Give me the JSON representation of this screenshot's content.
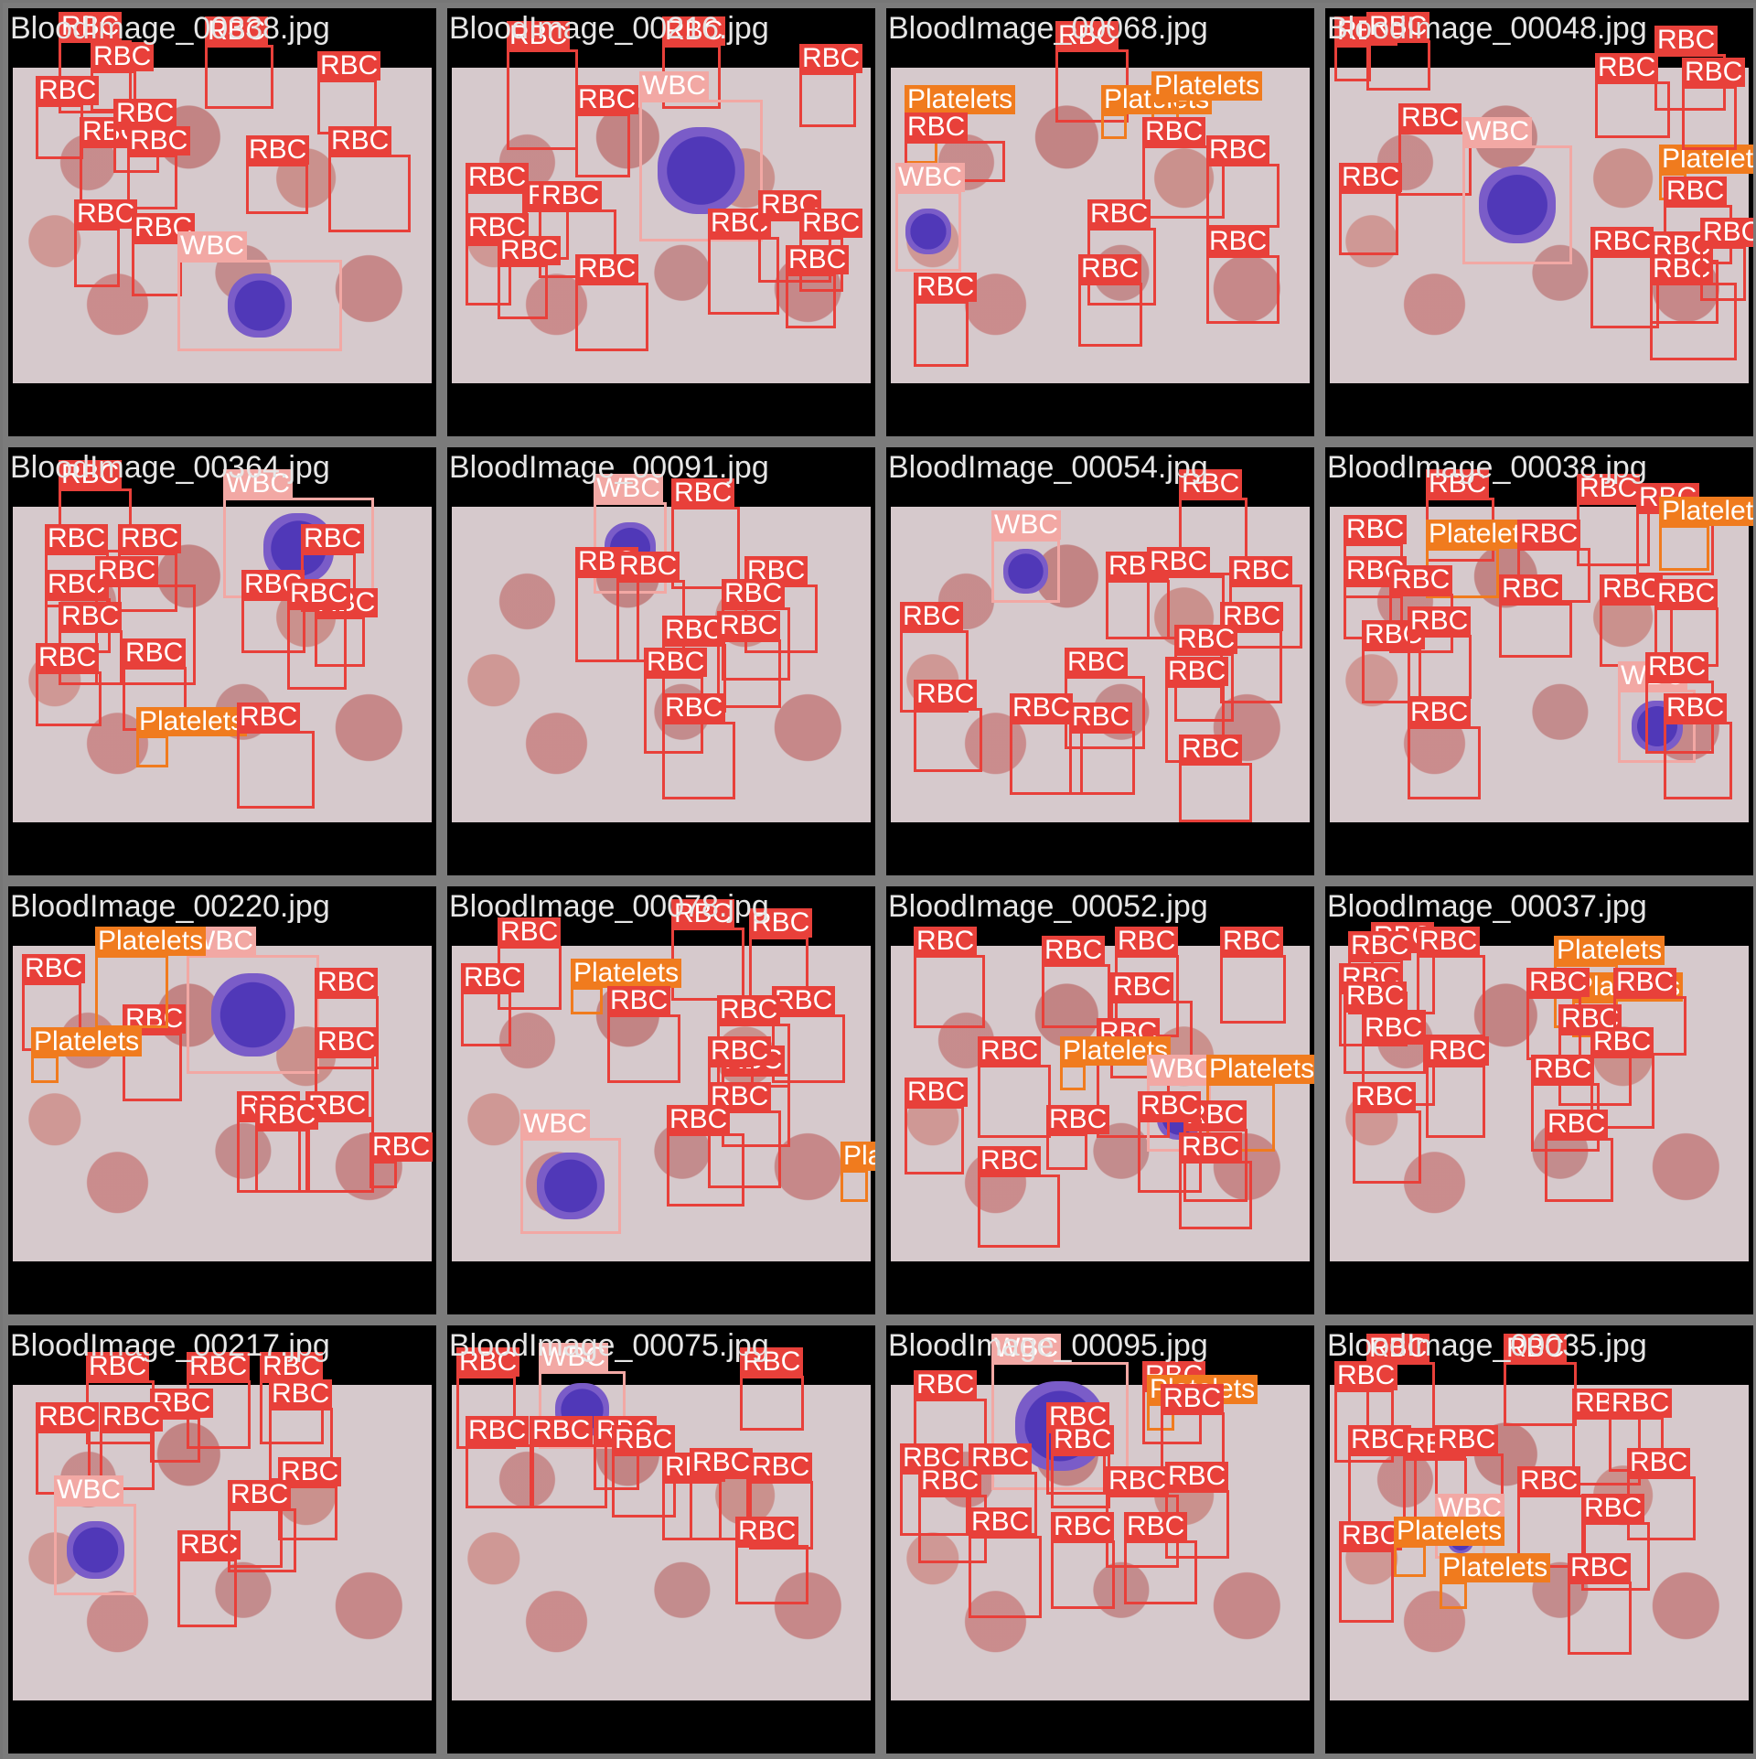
{
  "tiles": [
    {
      "filename": "BloodImage_00338.jpg",
      "detections": [
        {
          "label": "RBC",
          "cls": "rbc"
        },
        {
          "label": "RBC",
          "cls": "rbc"
        },
        {
          "label": "RBC",
          "cls": "rbc"
        },
        {
          "label": "RBC",
          "cls": "rbc"
        },
        {
          "label": "RBC",
          "cls": "rbc"
        },
        {
          "label": "RBC",
          "cls": "rbc"
        },
        {
          "label": "RBC",
          "cls": "rbc"
        },
        {
          "label": "RBC",
          "cls": "rbc"
        },
        {
          "label": "RBC",
          "cls": "rbc"
        },
        {
          "label": "RBC",
          "cls": "rbc"
        },
        {
          "label": "RBC",
          "cls": "rbc"
        },
        {
          "label": "RBC",
          "cls": "rbc"
        },
        {
          "label": "WBC",
          "cls": "wbc"
        }
      ]
    },
    {
      "filename": "BloodImage_00216.jpg",
      "detections": [
        {
          "label": "RBC",
          "cls": "rbc"
        },
        {
          "label": "RBC",
          "cls": "rbc"
        },
        {
          "label": "RBC",
          "cls": "rbc"
        },
        {
          "label": "RBC",
          "cls": "rbc"
        },
        {
          "label": "WBC",
          "cls": "wbc"
        },
        {
          "label": "RBC",
          "cls": "rbc"
        },
        {
          "label": "RBC",
          "cls": "rbc"
        },
        {
          "label": "RBC",
          "cls": "rbc"
        },
        {
          "label": "RBC",
          "cls": "rbc"
        },
        {
          "label": "RBC",
          "cls": "rbc"
        },
        {
          "label": "RBC",
          "cls": "rbc"
        },
        {
          "label": "RBC",
          "cls": "rbc"
        },
        {
          "label": "RBC",
          "cls": "rbc"
        },
        {
          "label": "RBC",
          "cls": "rbc"
        },
        {
          "label": "RBC",
          "cls": "rbc"
        }
      ]
    },
    {
      "filename": "BloodImage_00068.jpg",
      "detections": [
        {
          "label": "RBC",
          "cls": "rbc"
        },
        {
          "label": "Platelets",
          "cls": "plt"
        },
        {
          "label": "Platelets",
          "cls": "plt"
        },
        {
          "label": "Platelets",
          "cls": "plt"
        },
        {
          "label": "RBC",
          "cls": "rbc"
        },
        {
          "label": "WBC",
          "cls": "wbc"
        },
        {
          "label": "RBC",
          "cls": "rbc"
        },
        {
          "label": "RBC",
          "cls": "rbc"
        },
        {
          "label": "RBC",
          "cls": "rbc"
        },
        {
          "label": "RBC",
          "cls": "rbc"
        },
        {
          "label": "RBC",
          "cls": "rbc"
        },
        {
          "label": "RBC",
          "cls": "rbc"
        }
      ]
    },
    {
      "filename": "BloodImage_00048.jpg",
      "detections": [
        {
          "label": "RBC",
          "cls": "rbc"
        },
        {
          "label": "RBC",
          "cls": "rbc"
        },
        {
          "label": "RBC",
          "cls": "rbc"
        },
        {
          "label": "RBC",
          "cls": "rbc"
        },
        {
          "label": "RBC",
          "cls": "rbc"
        },
        {
          "label": "WBC",
          "cls": "wbc"
        },
        {
          "label": "Platelets",
          "cls": "plt"
        },
        {
          "label": "RBC",
          "cls": "rbc"
        },
        {
          "label": "RBC",
          "cls": "rbc"
        },
        {
          "label": "RBC",
          "cls": "rbc"
        },
        {
          "label": "RBC",
          "cls": "rbc"
        },
        {
          "label": "RBC",
          "cls": "rbc"
        },
        {
          "label": "RBC",
          "cls": "rbc"
        },
        {
          "label": "RBC",
          "cls": "rbc"
        }
      ]
    },
    {
      "filename": "BloodImage_00364.jpg",
      "detections": [
        {
          "label": "RBC",
          "cls": "rbc"
        },
        {
          "label": "WBC",
          "cls": "wbc"
        },
        {
          "label": "RBC",
          "cls": "rbc"
        },
        {
          "label": "RBC",
          "cls": "rbc"
        },
        {
          "label": "RBC",
          "cls": "rbc"
        },
        {
          "label": "RBC",
          "cls": "rbc"
        },
        {
          "label": "RBC",
          "cls": "rbc"
        },
        {
          "label": "RBC",
          "cls": "rbc"
        },
        {
          "label": "RBC",
          "cls": "rbc"
        },
        {
          "label": "RBC",
          "cls": "rbc"
        },
        {
          "label": "RBC",
          "cls": "rbc"
        },
        {
          "label": "RBC",
          "cls": "rbc"
        },
        {
          "label": "RBC",
          "cls": "rbc"
        },
        {
          "label": "Platelets",
          "cls": "plt"
        },
        {
          "label": "RBC",
          "cls": "rbc"
        }
      ]
    },
    {
      "filename": "BloodImage_00091.jpg",
      "detections": [
        {
          "label": "WBC",
          "cls": "wbc"
        },
        {
          "label": "RBC",
          "cls": "rbc"
        },
        {
          "label": "RBC",
          "cls": "rbc"
        },
        {
          "label": "RBC",
          "cls": "rbc"
        },
        {
          "label": "RBC",
          "cls": "rbc"
        },
        {
          "label": "RBC",
          "cls": "rbc"
        },
        {
          "label": "RBC",
          "cls": "rbc"
        },
        {
          "label": "RBC",
          "cls": "rbc"
        },
        {
          "label": "RBC",
          "cls": "rbc"
        },
        {
          "label": "RBC",
          "cls": "rbc"
        }
      ]
    },
    {
      "filename": "BloodImage_00054.jpg",
      "detections": [
        {
          "label": "RBC",
          "cls": "rbc"
        },
        {
          "label": "WBC",
          "cls": "wbc"
        },
        {
          "label": "RBC",
          "cls": "rbc"
        },
        {
          "label": "RBC",
          "cls": "rbc"
        },
        {
          "label": "RBC",
          "cls": "rbc"
        },
        {
          "label": "RBC",
          "cls": "rbc"
        },
        {
          "label": "RBC",
          "cls": "rbc"
        },
        {
          "label": "RBC",
          "cls": "rbc"
        },
        {
          "label": "RBC",
          "cls": "rbc"
        },
        {
          "label": "RBC",
          "cls": "rbc"
        },
        {
          "label": "RBC",
          "cls": "rbc"
        },
        {
          "label": "RBC",
          "cls": "rbc"
        },
        {
          "label": "RBC",
          "cls": "rbc"
        },
        {
          "label": "RBC",
          "cls": "rbc"
        }
      ]
    },
    {
      "filename": "BloodImage_00038.jpg",
      "detections": [
        {
          "label": "RBC",
          "cls": "rbc"
        },
        {
          "label": "RBC",
          "cls": "rbc"
        },
        {
          "label": "RBC",
          "cls": "rbc"
        },
        {
          "label": "Platelets",
          "cls": "plt"
        },
        {
          "label": "RBC",
          "cls": "rbc"
        },
        {
          "label": "Platelets",
          "cls": "plt"
        },
        {
          "label": "RBC",
          "cls": "rbc"
        },
        {
          "label": "RBC",
          "cls": "rbc"
        },
        {
          "label": "RBC",
          "cls": "rbc"
        },
        {
          "label": "RBC",
          "cls": "rbc"
        },
        {
          "label": "RBC",
          "cls": "rbc"
        },
        {
          "label": "RBC",
          "cls": "rbc"
        },
        {
          "label": "RBC",
          "cls": "rbc"
        },
        {
          "label": "RBC",
          "cls": "rbc"
        },
        {
          "label": "WBC",
          "cls": "wbc"
        },
        {
          "label": "RBC",
          "cls": "rbc"
        },
        {
          "label": "RBC",
          "cls": "rbc"
        },
        {
          "label": "RBC",
          "cls": "rbc"
        }
      ]
    },
    {
      "filename": "BloodImage_00220.jpg",
      "detections": [
        {
          "label": "RBC",
          "cls": "rbc"
        },
        {
          "label": "WBC",
          "cls": "wbc"
        },
        {
          "label": "RBC",
          "cls": "rbc"
        },
        {
          "label": "RBC",
          "cls": "rbc"
        },
        {
          "label": "RBC",
          "cls": "rbc"
        },
        {
          "label": "Platelets",
          "cls": "plt"
        },
        {
          "label": "RBC",
          "cls": "rbc"
        },
        {
          "label": "RBC",
          "cls": "rbc"
        },
        {
          "label": "RBC",
          "cls": "rbc"
        },
        {
          "label": "RBC",
          "cls": "rbc"
        },
        {
          "label": "RBC",
          "cls": "rbc"
        },
        {
          "label": "Platelets",
          "cls": "plt"
        }
      ]
    },
    {
      "filename": "BloodImage_00078.jpg",
      "detections": [
        {
          "label": "RBC",
          "cls": "rbc"
        },
        {
          "label": "RBC",
          "cls": "rbc"
        },
        {
          "label": "RBC",
          "cls": "rbc"
        },
        {
          "label": "RBC",
          "cls": "rbc"
        },
        {
          "label": "Platelets",
          "cls": "plt"
        },
        {
          "label": "RBC",
          "cls": "rbc"
        },
        {
          "label": "RBC",
          "cls": "rbc"
        },
        {
          "label": "RBC",
          "cls": "rbc"
        },
        {
          "label": "RBC",
          "cls": "rbc"
        },
        {
          "label": "RBC",
          "cls": "rbc"
        },
        {
          "label": "RBC",
          "cls": "rbc"
        },
        {
          "label": "WBC",
          "cls": "wbc"
        },
        {
          "label": "RBC",
          "cls": "rbc"
        },
        {
          "label": "Platelets",
          "cls": "plt"
        }
      ]
    },
    {
      "filename": "BloodImage_00052.jpg",
      "detections": [
        {
          "label": "RBC",
          "cls": "rbc"
        },
        {
          "label": "RBC",
          "cls": "rbc"
        },
        {
          "label": "RBC",
          "cls": "rbc"
        },
        {
          "label": "RBC",
          "cls": "rbc"
        },
        {
          "label": "RBC",
          "cls": "rbc"
        },
        {
          "label": "RBC",
          "cls": "rbc"
        },
        {
          "label": "Platelets",
          "cls": "plt"
        },
        {
          "label": "RBC",
          "cls": "rbc"
        },
        {
          "label": "WBC",
          "cls": "wbc"
        },
        {
          "label": "Platelets",
          "cls": "plt"
        },
        {
          "label": "RBC",
          "cls": "rbc"
        },
        {
          "label": "RBC",
          "cls": "rbc"
        },
        {
          "label": "RBC",
          "cls": "rbc"
        },
        {
          "label": "RBC",
          "cls": "rbc"
        },
        {
          "label": "RBC",
          "cls": "rbc"
        },
        {
          "label": "RBC",
          "cls": "rbc"
        }
      ]
    },
    {
      "filename": "BloodImage_00037.jpg",
      "detections": [
        {
          "label": "RBC",
          "cls": "rbc"
        },
        {
          "label": "RBC",
          "cls": "rbc"
        },
        {
          "label": "RBC",
          "cls": "rbc"
        },
        {
          "label": "Platelets",
          "cls": "plt"
        },
        {
          "label": "RBC",
          "cls": "rbc"
        },
        {
          "label": "Platelets",
          "cls": "plt"
        },
        {
          "label": "RBC",
          "cls": "rbc"
        },
        {
          "label": "RBC",
          "cls": "rbc"
        },
        {
          "label": "RBC",
          "cls": "rbc"
        },
        {
          "label": "RBC",
          "cls": "rbc"
        },
        {
          "label": "RBC",
          "cls": "rbc"
        },
        {
          "label": "RBC",
          "cls": "rbc"
        },
        {
          "label": "RBC",
          "cls": "rbc"
        },
        {
          "label": "RBC",
          "cls": "rbc"
        },
        {
          "label": "RBC",
          "cls": "rbc"
        },
        {
          "label": "RBC",
          "cls": "rbc"
        }
      ]
    },
    {
      "filename": "BloodImage_00217.jpg",
      "detections": [
        {
          "label": "RBC",
          "cls": "rbc"
        },
        {
          "label": "RBC",
          "cls": "rbc"
        },
        {
          "label": "RBC",
          "cls": "rbc"
        },
        {
          "label": "RBC",
          "cls": "rbc"
        },
        {
          "label": "RBC",
          "cls": "rbc"
        },
        {
          "label": "RBC",
          "cls": "rbc"
        },
        {
          "label": "WBC",
          "cls": "wbc"
        },
        {
          "label": "RBC",
          "cls": "rbc"
        },
        {
          "label": "RBC",
          "cls": "rbc"
        },
        {
          "label": "RBC",
          "cls": "rbc"
        },
        {
          "label": "RBC",
          "cls": "rbc"
        },
        {
          "label": "RBC",
          "cls": "rbc"
        }
      ]
    },
    {
      "filename": "BloodImage_00075.jpg",
      "detections": [
        {
          "label": "RBC",
          "cls": "rbc"
        },
        {
          "label": "WBC",
          "cls": "wbc"
        },
        {
          "label": "RBC",
          "cls": "rbc"
        },
        {
          "label": "RBC",
          "cls": "rbc"
        },
        {
          "label": "RBC",
          "cls": "rbc"
        },
        {
          "label": "RBC",
          "cls": "rbc"
        },
        {
          "label": "RBC",
          "cls": "rbc"
        },
        {
          "label": "RBC",
          "cls": "rbc"
        },
        {
          "label": "RBC",
          "cls": "rbc"
        },
        {
          "label": "RBC",
          "cls": "rbc"
        },
        {
          "label": "RBC",
          "cls": "rbc"
        }
      ]
    },
    {
      "filename": "BloodImage_00095.jpg",
      "detections": [
        {
          "label": "WBC",
          "cls": "wbc"
        },
        {
          "label": "RBC",
          "cls": "rbc"
        },
        {
          "label": "Platelets",
          "cls": "plt"
        },
        {
          "label": "RBC",
          "cls": "rbc"
        },
        {
          "label": "RBC",
          "cls": "rbc"
        },
        {
          "label": "RBC",
          "cls": "rbc"
        },
        {
          "label": "RBC",
          "cls": "rbc"
        },
        {
          "label": "RBC",
          "cls": "rbc"
        },
        {
          "label": "RBC",
          "cls": "rbc"
        },
        {
          "label": "RBC",
          "cls": "rbc"
        },
        {
          "label": "RBC",
          "cls": "rbc"
        },
        {
          "label": "RBC",
          "cls": "rbc"
        },
        {
          "label": "RBC",
          "cls": "rbc"
        },
        {
          "label": "RBC",
          "cls": "rbc"
        },
        {
          "label": "RBC",
          "cls": "rbc"
        }
      ]
    },
    {
      "filename": "BloodImage_00035.jpg",
      "detections": [
        {
          "label": "RBC",
          "cls": "rbc"
        },
        {
          "label": "RBC",
          "cls": "rbc"
        },
        {
          "label": "RBC",
          "cls": "rbc"
        },
        {
          "label": "RBC",
          "cls": "rbc"
        },
        {
          "label": "RBC",
          "cls": "rbc"
        },
        {
          "label": "RBC",
          "cls": "rbc"
        },
        {
          "label": "RBC",
          "cls": "rbc"
        },
        {
          "label": "RBC",
          "cls": "rbc"
        },
        {
          "label": "RBC",
          "cls": "rbc"
        },
        {
          "label": "RBC",
          "cls": "rbc"
        },
        {
          "label": "WBC",
          "cls": "wbc"
        },
        {
          "label": "RBC",
          "cls": "rbc"
        },
        {
          "label": "Platelets",
          "cls": "plt"
        },
        {
          "label": "RBC",
          "cls": "rbc"
        },
        {
          "label": "Platelets",
          "cls": "plt"
        },
        {
          "label": "RBC",
          "cls": "rbc"
        }
      ]
    }
  ],
  "colors": {
    "rbc": "#e8403a",
    "wbc": "#f2a8a4",
    "platelets": "#f07b1e",
    "border": "#7b7b7b"
  }
}
